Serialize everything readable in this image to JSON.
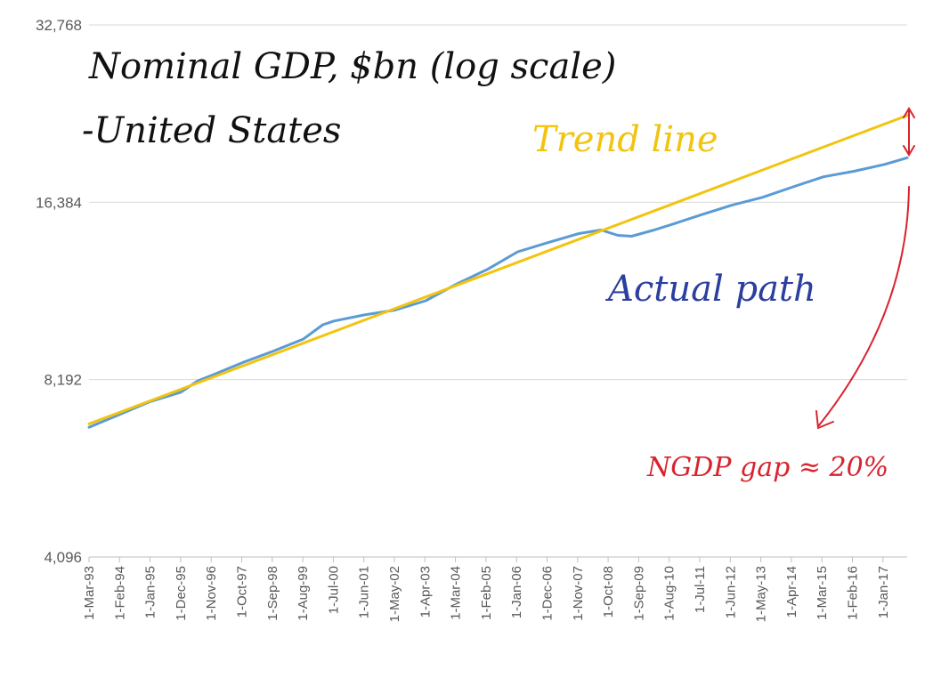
{
  "chart_data": {
    "type": "line",
    "title": "Nominal GDP, $bn (log scale)",
    "subtitle": "-United States",
    "y_scale": "log2",
    "ylim": [
      4096,
      32768
    ],
    "yticks": [
      "32,768",
      "16,384",
      "8,192",
      "4,096"
    ],
    "ytick_values": [
      32768,
      16384,
      8192,
      4096
    ],
    "grid": "horizontal",
    "x_tick_labels": [
      "1-Mar-93",
      "1-Feb-94",
      "1-Jan-95",
      "1-Dec-95",
      "1-Nov-96",
      "1-Oct-97",
      "1-Sep-98",
      "1-Aug-99",
      "1-Jul-00",
      "1-Jun-01",
      "1-May-02",
      "1-Apr-03",
      "1-Mar-04",
      "1-Feb-05",
      "1-Jan-06",
      "1-Dec-06",
      "1-Nov-07",
      "1-Oct-08",
      "1-Sep-09",
      "1-Aug-10",
      "1-Jul-11",
      "1-Jun-12",
      "1-May-13",
      "1-Apr-14",
      "1-Mar-15",
      "1-Feb-16",
      "1-Jan-17"
    ],
    "xlim": [
      "1993-03-01",
      "2017-09-01"
    ],
    "series": [
      {
        "name": "Actual path",
        "color": "#5b9bd5",
        "points": [
          [
            "1993-03-01",
            6800
          ],
          [
            "1994-02-01",
            7150
          ],
          [
            "1995-01-01",
            7520
          ],
          [
            "1995-12-01",
            7800
          ],
          [
            "1996-06-01",
            8150
          ],
          [
            "1996-11-01",
            8330
          ],
          [
            "1997-10-01",
            8750
          ],
          [
            "1998-09-01",
            9150
          ],
          [
            "1999-08-01",
            9600
          ],
          [
            "2000-03-01",
            10150
          ],
          [
            "2000-07-01",
            10300
          ],
          [
            "2001-06-01",
            10550
          ],
          [
            "2002-05-01",
            10750
          ],
          [
            "2003-04-01",
            11150
          ],
          [
            "2004-03-01",
            11900
          ],
          [
            "2005-02-01",
            12600
          ],
          [
            "2006-01-01",
            13500
          ],
          [
            "2006-12-01",
            14000
          ],
          [
            "2007-11-01",
            14500
          ],
          [
            "2008-07-01",
            14700
          ],
          [
            "2009-01-01",
            14400
          ],
          [
            "2009-06-01",
            14350
          ],
          [
            "2010-02-01",
            14700
          ],
          [
            "2010-08-01",
            15000
          ],
          [
            "2011-07-01",
            15600
          ],
          [
            "2012-06-01",
            16200
          ],
          [
            "2013-05-01",
            16700
          ],
          [
            "2014-04-01",
            17400
          ],
          [
            "2015-03-01",
            18100
          ],
          [
            "2016-02-01",
            18500
          ],
          [
            "2017-01-01",
            19000
          ],
          [
            "2017-09-01",
            19500
          ]
        ]
      },
      {
        "name": "Trend line",
        "color": "#f2c40f",
        "points": [
          [
            "1993-03-01",
            6890
          ],
          [
            "2017-09-01",
            23000
          ]
        ]
      }
    ],
    "annotations": [
      {
        "text": "Trend line",
        "color": "#f2c40f"
      },
      {
        "text": "Actual path",
        "color": "#2b3f9e"
      },
      {
        "text": "NGDP gap ≈ 20%",
        "color": "#d9232e"
      }
    ]
  }
}
